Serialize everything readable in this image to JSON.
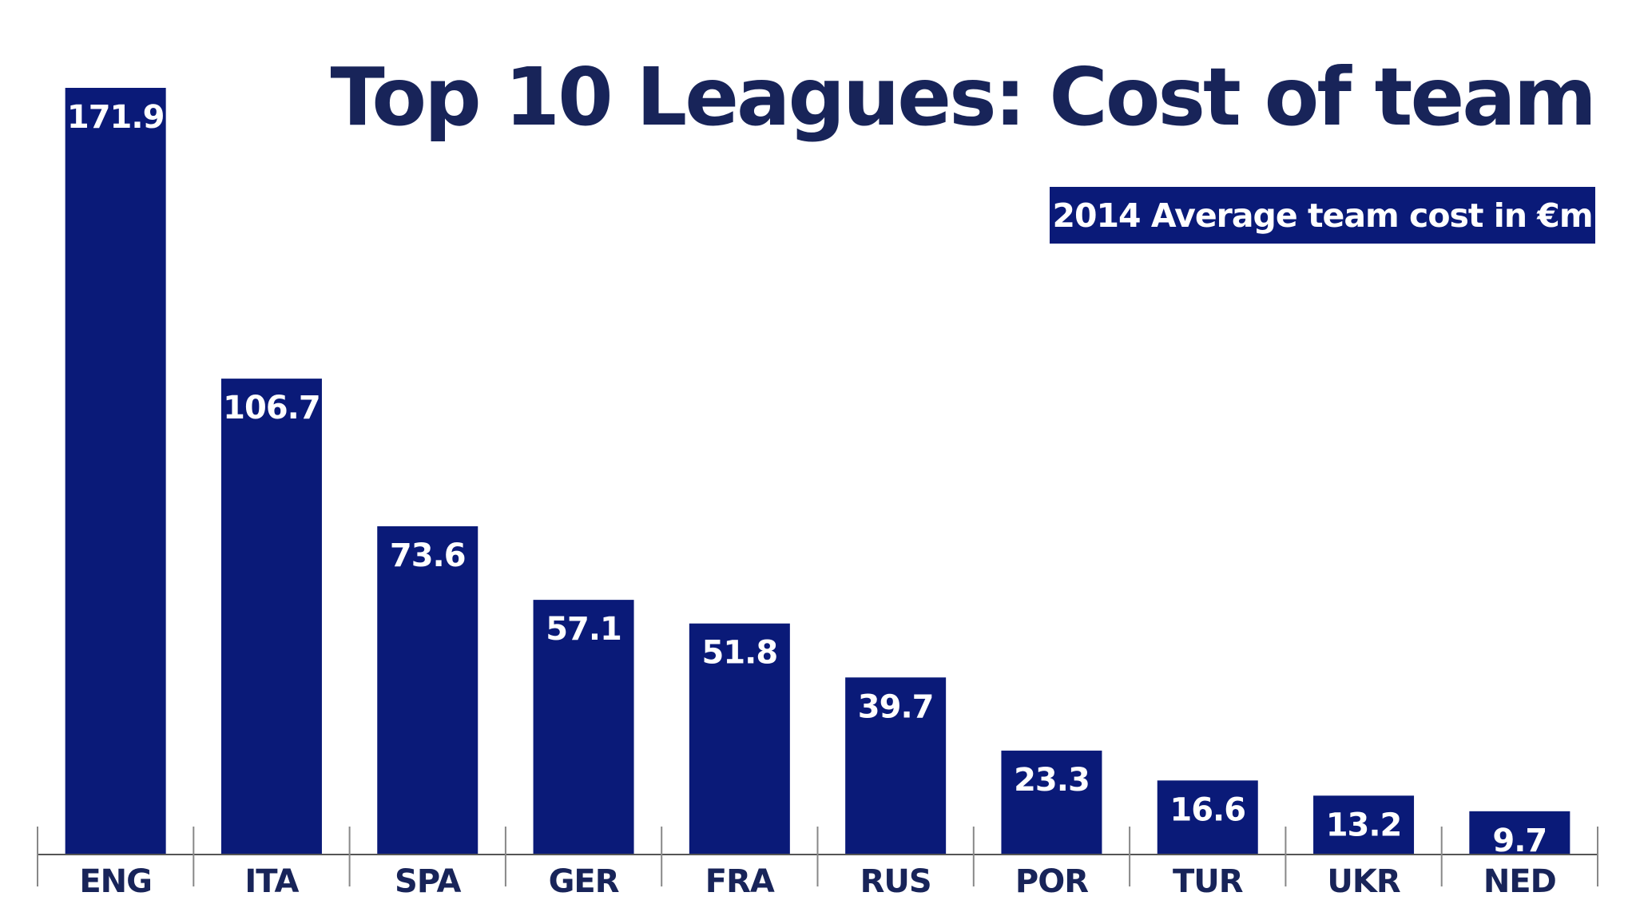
{
  "chart_data": {
    "type": "bar",
    "title": "Top 10 Leagues: Cost of team",
    "subtitle": "2014 Average team cost in €m",
    "categories": [
      "ENG",
      "ITA",
      "SPA",
      "GER",
      "FRA",
      "RUS",
      "POR",
      "TUR",
      "UKR",
      "NED"
    ],
    "values": [
      171.9,
      106.7,
      73.6,
      57.1,
      51.8,
      39.7,
      23.3,
      16.6,
      13.2,
      9.7
    ],
    "value_labels": [
      "171.9",
      "106.7",
      "73.6",
      "57.1",
      "51.8",
      "39.7",
      "23.3",
      "16.6",
      "13.2",
      "9.7"
    ],
    "xlabel": "",
    "ylabel": "",
    "ylim": [
      0,
      171.9
    ],
    "grid": false,
    "legend": "none",
    "colors": {
      "bar": "#0a1a78",
      "title": "#182459",
      "label": "#182459",
      "axis": "#555555",
      "value_text": "#ffffff"
    }
  }
}
